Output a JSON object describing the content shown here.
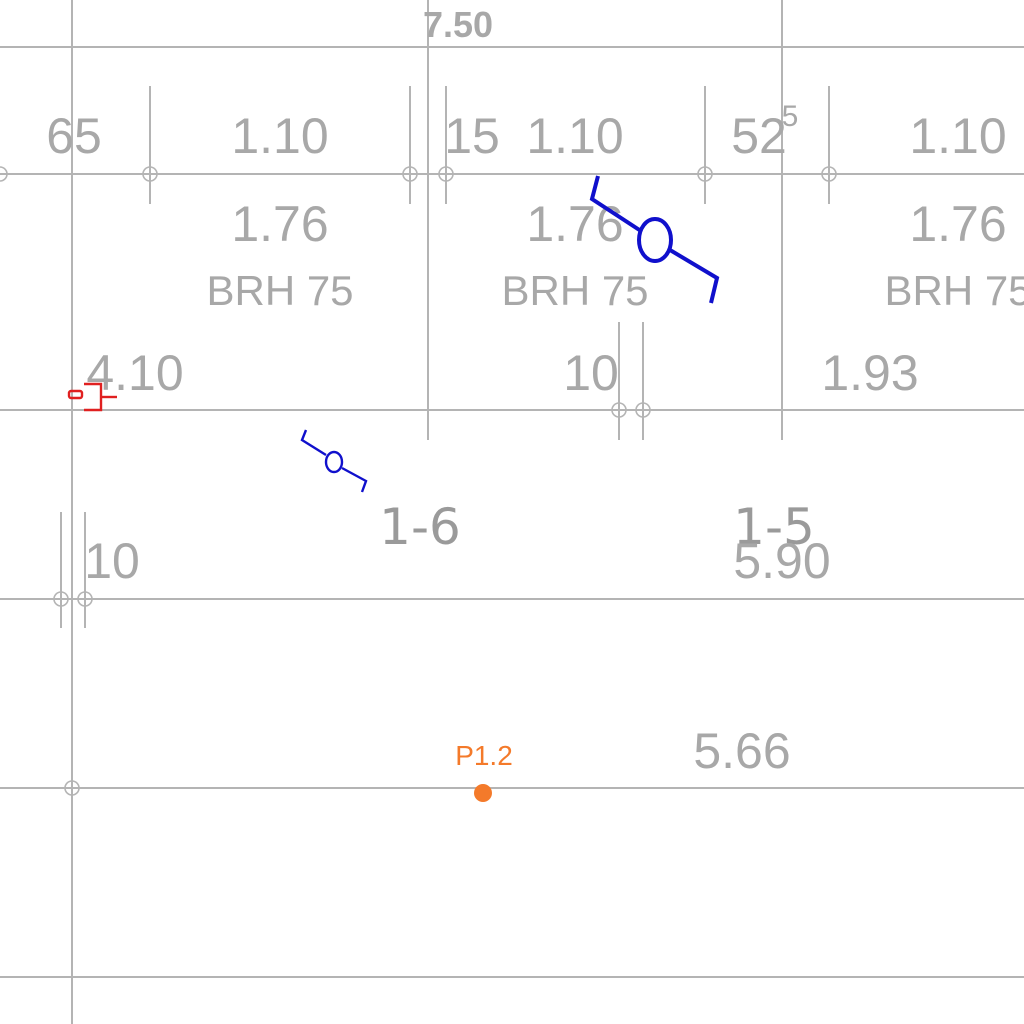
{
  "colors": {
    "line": "#b4b4b4",
    "text": "#a8a8a8",
    "door_swing": "#1010cc",
    "fixture": "#e02020",
    "point": "#f47a2a"
  },
  "overall_width": "7.50",
  "widths": {
    "w1": "65",
    "w2": "1.10",
    "w3": "15",
    "w4": "1.10",
    "w5_main": "52",
    "w5_sup": "5",
    "w6": "1.10"
  },
  "openings": [
    {
      "height": "1.76",
      "type": "BRH 75"
    },
    {
      "height": "1.76",
      "type": "BRH 75"
    },
    {
      "height": "1.76",
      "type": "BRH 75"
    }
  ],
  "lengths": {
    "l1": "4.10",
    "l2": "10",
    "l3": "1.93",
    "l4": "10",
    "area_1_5": "5.90",
    "area_lower": "5.66"
  },
  "rooms": {
    "r1": "1-6",
    "r2": "1-5"
  },
  "point": {
    "label": "P1.2",
    "icon": "circle-point-icon"
  },
  "icons": {
    "door_swing_large": "door-swing-icon",
    "door_swing_small": "door-swing-icon",
    "fixture": "socket-fixture-icon"
  }
}
